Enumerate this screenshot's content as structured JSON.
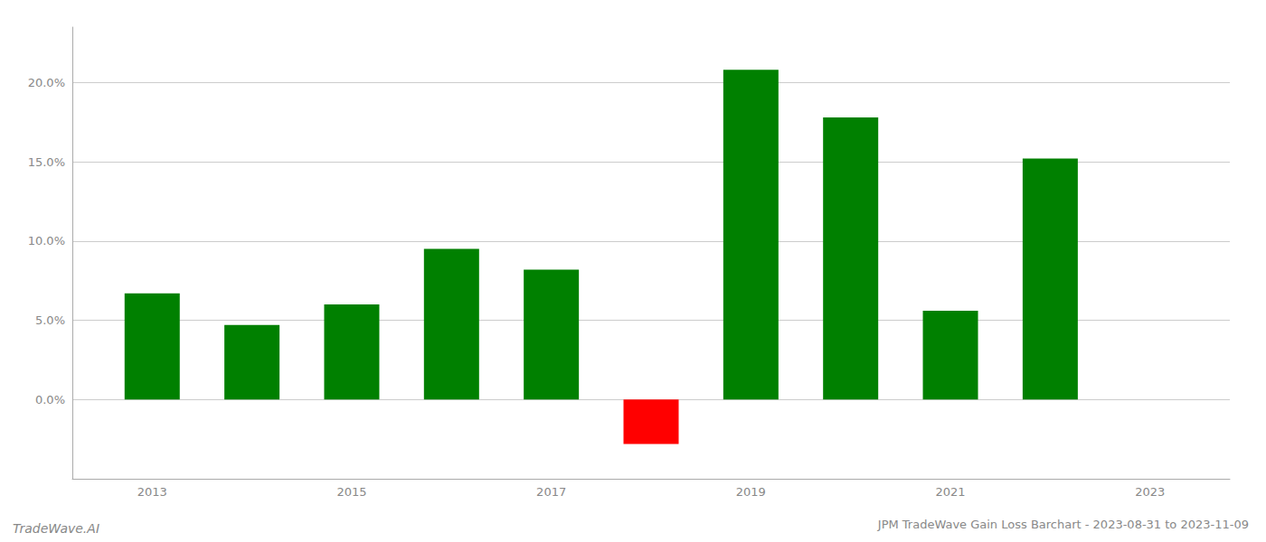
{
  "chart_data": {
    "type": "bar",
    "title": "JPM TradeWave Gain Loss Barchart - 2023-08-31 to 2023-11-09",
    "annotations": [
      "TradeWave.AI"
    ],
    "x": [
      2013,
      2014,
      2015,
      2016,
      2017,
      2018,
      2019,
      2020,
      2021,
      2022
    ],
    "values": [
      0.067,
      0.047,
      0.06,
      0.095,
      0.082,
      -0.028,
      0.208,
      0.178,
      0.056,
      0.152
    ],
    "colors": [
      "#008000",
      "#008000",
      "#008000",
      "#008000",
      "#008000",
      "#ff0000",
      "#008000",
      "#008000",
      "#008000",
      "#008000"
    ],
    "xlim": [
      2012.2,
      2023.8
    ],
    "xticks": [
      2013,
      2015,
      2017,
      2019,
      2021,
      2023
    ],
    "ylim": [
      -0.05,
      0.235
    ],
    "yticks": [
      {
        "value": 0.0,
        "label": "0.0%"
      },
      {
        "value": 0.05,
        "label": "5.0%"
      },
      {
        "value": 0.1,
        "label": "10.0%"
      },
      {
        "value": 0.15,
        "label": "15.0%"
      },
      {
        "value": 0.2,
        "label": "20.0%"
      }
    ],
    "grid": true
  }
}
